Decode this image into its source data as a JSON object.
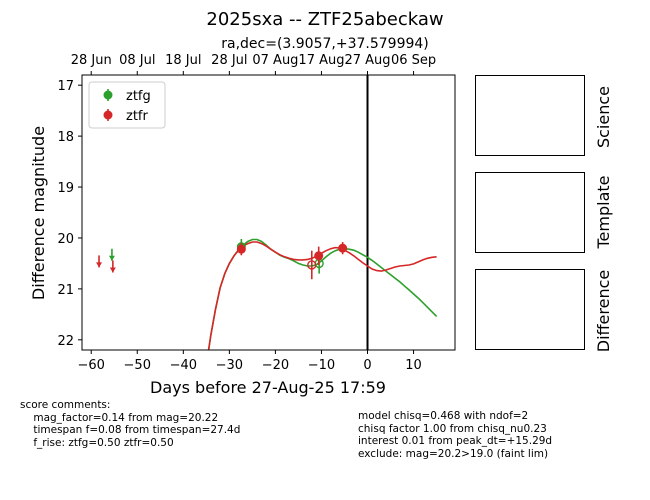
{
  "chart_data": {
    "type": "scatter",
    "title": "2025sxa -- ZTF25abeckaw",
    "subtitle": "ra,dec=(3.9057,+37.579994)",
    "xlabel": "Days before 27-Aug-25 17:59",
    "ylabel": "Difference magnitude",
    "xlim": [
      -62,
      19
    ],
    "ylim": [
      22.2,
      16.8
    ],
    "x_ticks": [
      -60,
      -50,
      -40,
      -30,
      -20,
      -10,
      0,
      10
    ],
    "y_ticks": [
      17,
      18,
      19,
      20,
      21,
      22
    ],
    "top_axis_ticks": [
      {
        "x": -60,
        "label": "28 Jun"
      },
      {
        "x": -50,
        "label": "08 Jul"
      },
      {
        "x": -40,
        "label": "18 Jul"
      },
      {
        "x": -30,
        "label": "28 Jul"
      },
      {
        "x": -20,
        "label": "07 Aug"
      },
      {
        "x": -10,
        "label": "17 Aug"
      },
      {
        "x": 0,
        "label": "27 Aug"
      },
      {
        "x": 10,
        "label": "06 Sep"
      }
    ],
    "legend": {
      "placement": "top-left",
      "entries": [
        {
          "label": "ztfg",
          "color": "#2ca02c"
        },
        {
          "label": "ztfr",
          "color": "#d62728"
        }
      ]
    },
    "vline_x": 0,
    "series": [
      {
        "name": "ztfg",
        "color": "#2ca02c",
        "detections": [
          {
            "x": -27.4,
            "y": 20.17,
            "err": 0.15
          },
          {
            "x": -10.5,
            "y": 20.5,
            "err": 0.2
          }
        ],
        "open_points": [
          {
            "x": -10.5,
            "y": 20.5
          }
        ],
        "upper_limits": [
          {
            "x": -55.5,
            "y": 20.35
          }
        ],
        "model": [
          [
            -34.5,
            22.2
          ],
          [
            -34,
            21.9
          ],
          [
            -33,
            21.4
          ],
          [
            -32,
            20.98
          ],
          [
            -31,
            20.7
          ],
          [
            -30,
            20.5
          ],
          [
            -29,
            20.35
          ],
          [
            -28,
            20.23
          ],
          [
            -27,
            20.14
          ],
          [
            -26,
            20.07
          ],
          [
            -25,
            20.03
          ],
          [
            -24,
            20.03
          ],
          [
            -23,
            20.07
          ],
          [
            -22,
            20.14
          ],
          [
            -21,
            20.22
          ],
          [
            -20,
            20.28
          ],
          [
            -19,
            20.34
          ],
          [
            -18,
            20.38
          ],
          [
            -17,
            20.41
          ],
          [
            -16,
            20.45
          ],
          [
            -15,
            20.5
          ],
          [
            -14,
            20.53
          ],
          [
            -13,
            20.55
          ],
          [
            -12,
            20.55
          ],
          [
            -11,
            20.52
          ],
          [
            -10,
            20.45
          ],
          [
            -9,
            20.37
          ],
          [
            -8,
            20.3
          ],
          [
            -7,
            20.25
          ],
          [
            -6,
            20.22
          ],
          [
            -5,
            20.21
          ],
          [
            -4,
            20.22
          ],
          [
            -3,
            20.24
          ],
          [
            -2,
            20.28
          ],
          [
            -1,
            20.33
          ],
          [
            0,
            20.38
          ],
          [
            1,
            20.44
          ],
          [
            2,
            20.51
          ],
          [
            3,
            20.58
          ],
          [
            4,
            20.65
          ],
          [
            5,
            20.72
          ],
          [
            6,
            20.79
          ],
          [
            7,
            20.86
          ],
          [
            8,
            20.94
          ],
          [
            9,
            21.02
          ],
          [
            10,
            21.1
          ],
          [
            11,
            21.18
          ],
          [
            12,
            21.27
          ],
          [
            13,
            21.36
          ],
          [
            14,
            21.45
          ],
          [
            15,
            21.54
          ]
        ]
      },
      {
        "name": "ztfr",
        "color": "#d62728",
        "detections": [
          {
            "x": -27.4,
            "y": 20.22,
            "err": 0.12
          },
          {
            "x": -12.1,
            "y": 20.53,
            "err": 0.28
          },
          {
            "x": -10.6,
            "y": 20.35,
            "err": 0.18
          },
          {
            "x": -5.4,
            "y": 20.2,
            "err": 0.12
          }
        ],
        "open_points": [
          {
            "x": -12.1,
            "y": 20.53
          }
        ],
        "upper_limits": [
          {
            "x": -58.3,
            "y": 20.48
          },
          {
            "x": -55.3,
            "y": 20.58
          }
        ],
        "model": [
          [
            -34.5,
            22.2
          ],
          [
            -34,
            21.9
          ],
          [
            -33,
            21.4
          ],
          [
            -32,
            20.98
          ],
          [
            -31,
            20.7
          ],
          [
            -30,
            20.5
          ],
          [
            -29,
            20.35
          ],
          [
            -28,
            20.24
          ],
          [
            -27,
            20.16
          ],
          [
            -26,
            20.11
          ],
          [
            -25,
            20.08
          ],
          [
            -24,
            20.08
          ],
          [
            -23,
            20.11
          ],
          [
            -22,
            20.16
          ],
          [
            -21,
            20.22
          ],
          [
            -20,
            20.28
          ],
          [
            -19,
            20.33
          ],
          [
            -18,
            20.37
          ],
          [
            -17,
            20.4
          ],
          [
            -16,
            20.42
          ],
          [
            -15,
            20.43
          ],
          [
            -14,
            20.43
          ],
          [
            -13,
            20.42
          ],
          [
            -12,
            20.4
          ],
          [
            -11,
            20.35
          ],
          [
            -10,
            20.3
          ],
          [
            -9,
            20.25
          ],
          [
            -8,
            20.21
          ],
          [
            -7,
            20.19
          ],
          [
            -6,
            20.2
          ],
          [
            -5,
            20.24
          ],
          [
            -4,
            20.29
          ],
          [
            -3,
            20.35
          ],
          [
            -2,
            20.42
          ],
          [
            -1,
            20.49
          ],
          [
            0,
            20.55
          ],
          [
            1,
            20.61
          ],
          [
            2,
            20.64
          ],
          [
            3,
            20.65
          ],
          [
            4,
            20.63
          ],
          [
            5,
            20.6
          ],
          [
            6,
            20.57
          ],
          [
            7,
            20.55
          ],
          [
            8,
            20.54
          ],
          [
            9,
            20.53
          ],
          [
            10,
            20.51
          ],
          [
            11,
            20.47
          ],
          [
            12,
            20.43
          ],
          [
            13,
            20.4
          ],
          [
            14,
            20.38
          ],
          [
            15,
            20.37
          ]
        ]
      }
    ]
  },
  "side_panels": [
    "Science",
    "Template",
    "Difference"
  ],
  "comments_left": [
    "score comments:",
    "    mag_factor=0.14 from mag=20.22",
    "    timespan f=0.08 from timespan=27.4d",
    "    f_rise: ztfg=0.50 ztfr=0.50"
  ],
  "comments_right": [
    "model chisq=0.468 with ndof=2",
    "chisq factor 1.00 from chisq_nu0.23",
    "interest 0.01 from peak_dt=+15.29d",
    "exclude: mag=20.2>19.0 (faint lim)"
  ]
}
